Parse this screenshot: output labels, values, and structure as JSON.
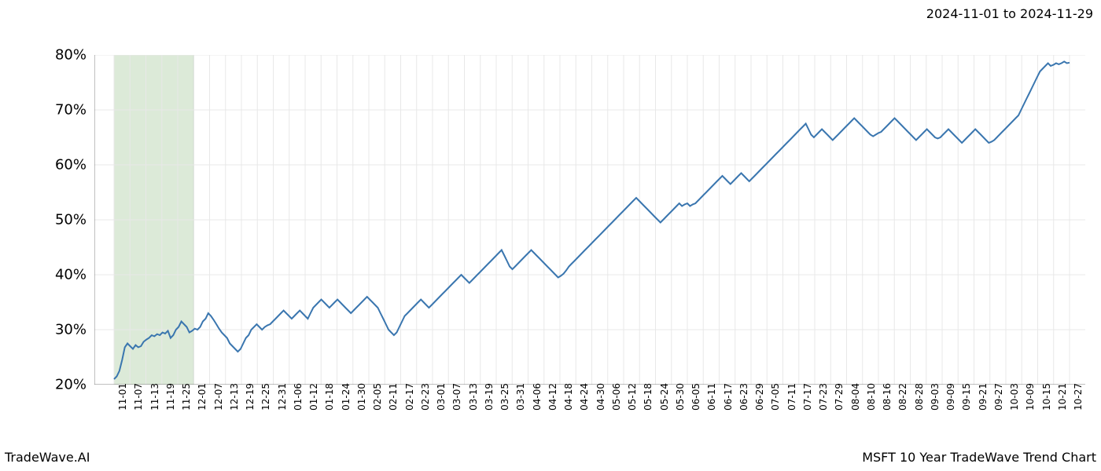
{
  "header": {
    "date_range": "2024-11-01 to 2024-11-29"
  },
  "footer": {
    "left": "TradeWave.AI",
    "right": "MSFT 10 Year TradeWave Trend Chart"
  },
  "chart": {
    "type": "line",
    "background_color": "#ffffff",
    "line_color": "#3a76af",
    "line_width": 2.0,
    "grid_color": "#e8e8e8",
    "tick_color": "#808080",
    "spine_color": "#808080",
    "highlight_band": {
      "fill_color": "#dcead8",
      "border_color": "#a8c8a0",
      "x_start": "11-01",
      "x_end": "12-01"
    },
    "ylim": [
      20,
      80
    ],
    "y_ticks": [
      {
        "value": 20,
        "label": "20%"
      },
      {
        "value": 30,
        "label": "30%"
      },
      {
        "value": 40,
        "label": "40%"
      },
      {
        "value": 50,
        "label": "50%"
      },
      {
        "value": 60,
        "label": "60%"
      },
      {
        "value": 70,
        "label": "70%"
      },
      {
        "value": 80,
        "label": "80%"
      }
    ],
    "x_tick_labels": [
      "11-01",
      "11-07",
      "11-13",
      "11-19",
      "11-25",
      "12-01",
      "12-07",
      "12-13",
      "12-19",
      "12-25",
      "12-31",
      "01-06",
      "01-12",
      "01-18",
      "01-24",
      "01-30",
      "02-05",
      "02-11",
      "02-17",
      "02-23",
      "03-01",
      "03-07",
      "03-13",
      "03-19",
      "03-25",
      "03-31",
      "04-06",
      "04-12",
      "04-18",
      "04-24",
      "04-30",
      "05-06",
      "05-12",
      "05-18",
      "05-24",
      "05-30",
      "06-05",
      "06-11",
      "06-17",
      "06-23",
      "06-29",
      "07-05",
      "07-11",
      "07-17",
      "07-23",
      "07-29",
      "08-04",
      "08-10",
      "08-16",
      "08-22",
      "08-28",
      "09-03",
      "09-09",
      "09-15",
      "09-21",
      "09-27",
      "10-03",
      "10-09",
      "10-15",
      "10-21",
      "10-27"
    ],
    "y_label_fontsize": 18,
    "x_label_fontsize": 12,
    "series": {
      "values": [
        21.0,
        21.5,
        22.5,
        24.5,
        26.8,
        27.5,
        27.0,
        26.5,
        27.2,
        26.8,
        27.0,
        27.8,
        28.2,
        28.5,
        29.0,
        28.8,
        29.2,
        29.0,
        29.5,
        29.3,
        29.8,
        28.5,
        29.0,
        30.0,
        30.5,
        31.5,
        31.0,
        30.5,
        29.5,
        29.8,
        30.2,
        30.0,
        30.5,
        31.5,
        32.0,
        33.0,
        32.5,
        31.8,
        31.0,
        30.2,
        29.5,
        29.0,
        28.5,
        27.5,
        27.0,
        26.5,
        26.0,
        26.5,
        27.5,
        28.5,
        29.0,
        30.0,
        30.5,
        31.0,
        30.5,
        30.0,
        30.5,
        30.8,
        31.0,
        31.5,
        32.0,
        32.5,
        33.0,
        33.5,
        33.0,
        32.5,
        32.0,
        32.5,
        33.0,
        33.5,
        33.0,
        32.5,
        32.0,
        33.0,
        34.0,
        34.5,
        35.0,
        35.5,
        35.0,
        34.5,
        34.0,
        34.5,
        35.0,
        35.5,
        35.0,
        34.5,
        34.0,
        33.5,
        33.0,
        33.5,
        34.0,
        34.5,
        35.0,
        35.5,
        36.0,
        35.5,
        35.0,
        34.5,
        34.0,
        33.0,
        32.0,
        31.0,
        30.0,
        29.5,
        29.0,
        29.5,
        30.5,
        31.5,
        32.5,
        33.0,
        33.5,
        34.0,
        34.5,
        35.0,
        35.5,
        35.0,
        34.5,
        34.0,
        34.5,
        35.0,
        35.5,
        36.0,
        36.5,
        37.0,
        37.5,
        38.0,
        38.5,
        39.0,
        39.5,
        40.0,
        39.5,
        39.0,
        38.5,
        39.0,
        39.5,
        40.0,
        40.5,
        41.0,
        41.5,
        42.0,
        42.5,
        43.0,
        43.5,
        44.0,
        44.5,
        43.5,
        42.5,
        41.5,
        41.0,
        41.5,
        42.0,
        42.5,
        43.0,
        43.5,
        44.0,
        44.5,
        44.0,
        43.5,
        43.0,
        42.5,
        42.0,
        41.5,
        41.0,
        40.5,
        40.0,
        39.5,
        39.8,
        40.2,
        40.8,
        41.5,
        42.0,
        42.5,
        43.0,
        43.5,
        44.0,
        44.5,
        45.0,
        45.5,
        46.0,
        46.5,
        47.0,
        47.5,
        48.0,
        48.5,
        49.0,
        49.5,
        50.0,
        50.5,
        51.0,
        51.5,
        52.0,
        52.5,
        53.0,
        53.5,
        54.0,
        53.5,
        53.0,
        52.5,
        52.0,
        51.5,
        51.0,
        50.5,
        50.0,
        49.5,
        50.0,
        50.5,
        51.0,
        51.5,
        52.0,
        52.5,
        53.0,
        52.5,
        52.8,
        53.0,
        52.5,
        52.8,
        53.0,
        53.5,
        54.0,
        54.5,
        55.0,
        55.5,
        56.0,
        56.5,
        57.0,
        57.5,
        58.0,
        57.5,
        57.0,
        56.5,
        57.0,
        57.5,
        58.0,
        58.5,
        58.0,
        57.5,
        57.0,
        57.5,
        58.0,
        58.5,
        59.0,
        59.5,
        60.0,
        60.5,
        61.0,
        61.5,
        62.0,
        62.5,
        63.0,
        63.5,
        64.0,
        64.5,
        65.0,
        65.5,
        66.0,
        66.5,
        67.0,
        67.5,
        66.5,
        65.5,
        65.0,
        65.5,
        66.0,
        66.5,
        66.0,
        65.5,
        65.0,
        64.5,
        65.0,
        65.5,
        66.0,
        66.5,
        67.0,
        67.5,
        68.0,
        68.5,
        68.0,
        67.5,
        67.0,
        66.5,
        66.0,
        65.5,
        65.2,
        65.5,
        65.8,
        66.0,
        66.5,
        67.0,
        67.5,
        68.0,
        68.5,
        68.0,
        67.5,
        67.0,
        66.5,
        66.0,
        65.5,
        65.0,
        64.5,
        65.0,
        65.5,
        66.0,
        66.5,
        66.0,
        65.5,
        65.0,
        64.8,
        65.0,
        65.5,
        66.0,
        66.5,
        66.0,
        65.5,
        65.0,
        64.5,
        64.0,
        64.5,
        65.0,
        65.5,
        66.0,
        66.5,
        66.0,
        65.5,
        65.0,
        64.5,
        64.0,
        64.2,
        64.5,
        65.0,
        65.5,
        66.0,
        66.5,
        67.0,
        67.5,
        68.0,
        68.5,
        69.0,
        70.0,
        71.0,
        72.0,
        73.0,
        74.0,
        75.0,
        76.0,
        77.0,
        77.5,
        78.0,
        78.5,
        78.0,
        78.2,
        78.5,
        78.3,
        78.5,
        78.8,
        78.5,
        78.6
      ]
    }
  }
}
